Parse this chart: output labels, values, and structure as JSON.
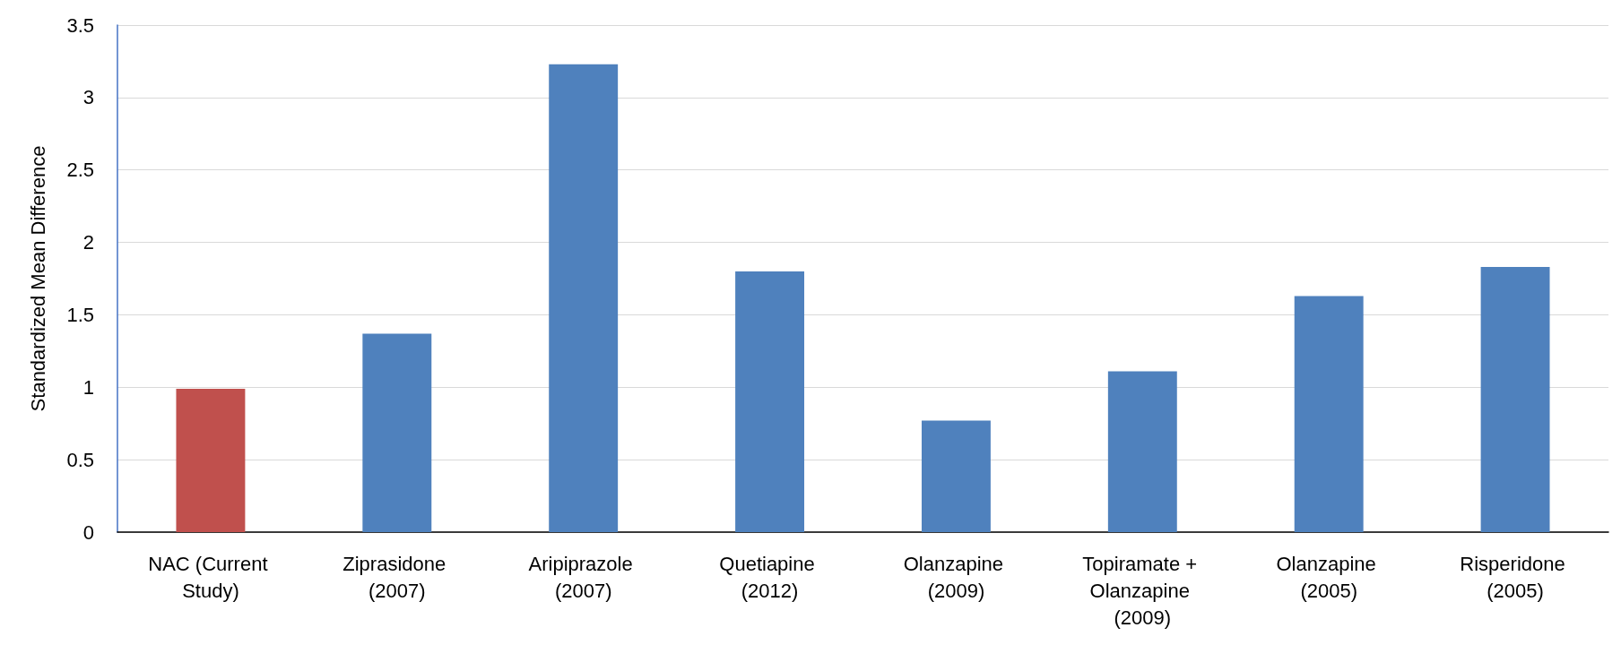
{
  "chart_data": {
    "type": "bar",
    "ylabel": "Standardized Mean Difference",
    "categories": [
      "NAC (Current Study)",
      "Ziprasidone (2007)",
      "Aripiprazole (2007)",
      "Quetiapine (2012)",
      "Olanzapine (2009)",
      "Topiramate + Olanzapine (2009)",
      "Olanzapine (2005)",
      "Risperidone (2005)"
    ],
    "values": [
      0.99,
      1.37,
      3.23,
      1.8,
      0.77,
      1.11,
      1.63,
      1.83
    ],
    "colors": [
      "#c0504d",
      "#4f81bd",
      "#4f81bd",
      "#4f81bd",
      "#4f81bd",
      "#4f81bd",
      "#4f81bd",
      "#4f81bd"
    ],
    "ylim": [
      0,
      3.5
    ],
    "yticks": [
      0,
      0.5,
      1,
      1.5,
      2,
      2.5,
      3,
      3.5
    ],
    "grid": "y"
  }
}
